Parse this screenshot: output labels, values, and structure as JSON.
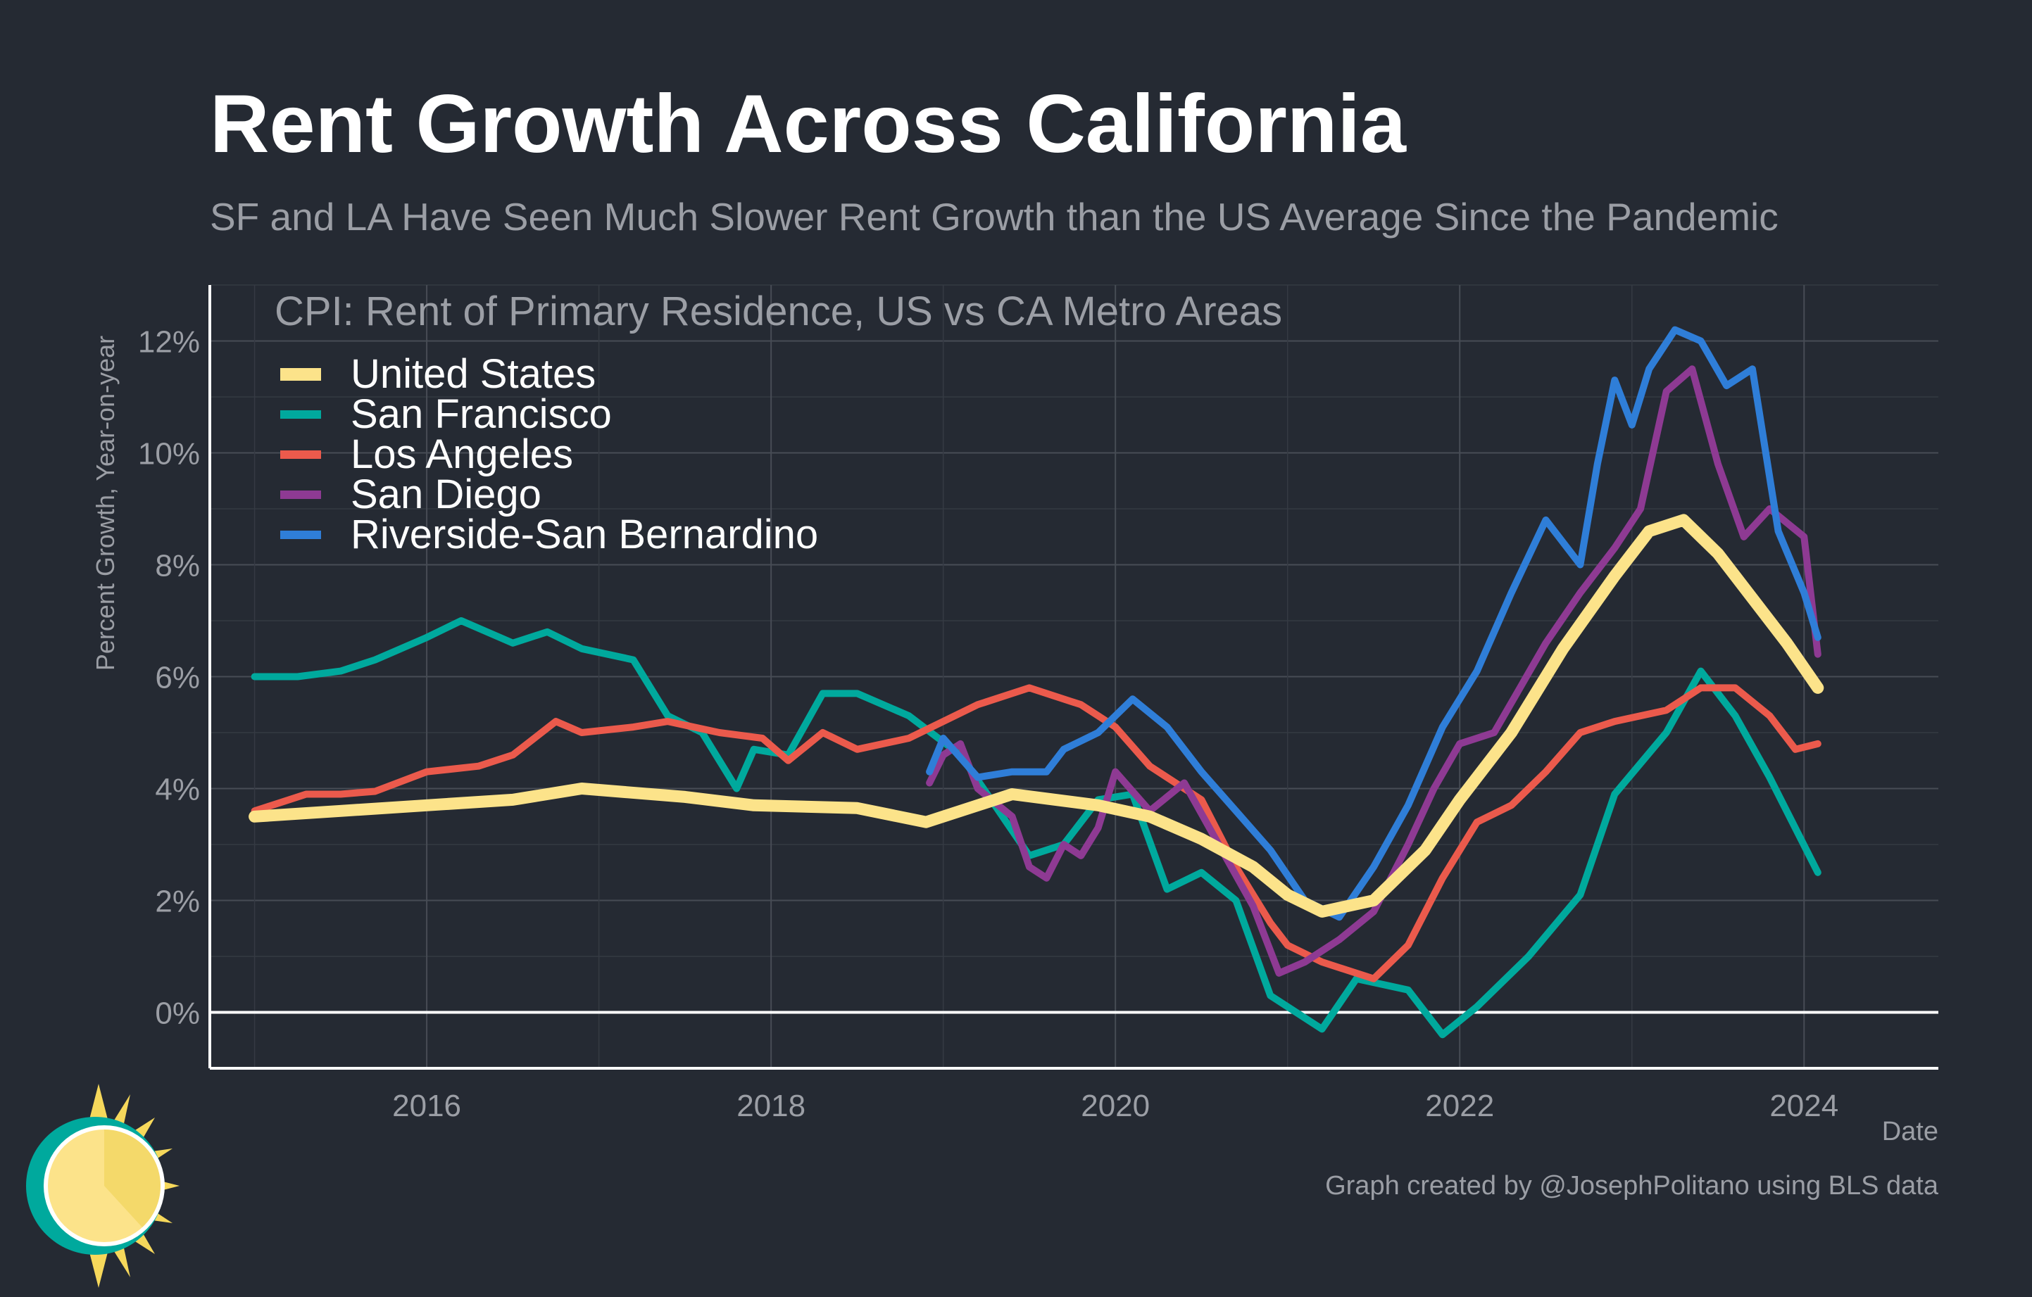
{
  "header": {
    "title": "Rent Growth Across California",
    "subtitle": "SF and LA Have Seen Much Slower Rent Growth than the US Average Since the Pandemic"
  },
  "caption": "Graph created by @JosephPolitano using BLS data",
  "logo": {
    "icon": "sun-logo-icon"
  },
  "chart_data": {
    "type": "line",
    "title": "CPI: Rent of Primary Residence, US vs CA Metro Areas",
    "xlabel": "Date",
    "ylabel": "Percent Growth, Year-on-year",
    "xlim": [
      2014.74,
      2024.78
    ],
    "ylim": [
      -1.0,
      13.0
    ],
    "x_ticks": [
      2016,
      2018,
      2020,
      2022,
      2024
    ],
    "x_tick_labels": [
      "2016",
      "2018",
      "2020",
      "2022",
      "2024"
    ],
    "y_ticks": [
      0,
      2,
      4,
      6,
      8,
      10,
      12
    ],
    "y_tick_labels": [
      "0%",
      "2%",
      "4%",
      "6%",
      "8%",
      "10%",
      "12%"
    ],
    "grid": true,
    "legend_position": "top-left",
    "background": "#252a33",
    "series": [
      {
        "name": "United States",
        "color": "#fce38a",
        "x": [
          2015.0,
          2015.5,
          2016.0,
          2016.5,
          2016.9,
          2017.5,
          2017.9,
          2018.5,
          2018.9,
          2019.4,
          2019.9,
          2020.2,
          2020.5,
          2020.8,
          2021.0,
          2021.2,
          2021.5,
          2021.8,
          2022.0,
          2022.3,
          2022.6,
          2022.9,
          2023.1,
          2023.3,
          2023.5,
          2023.7,
          2023.9,
          2024.08
        ],
        "values": [
          3.5,
          3.6,
          3.7,
          3.8,
          4.0,
          3.85,
          3.7,
          3.65,
          3.4,
          3.9,
          3.7,
          3.5,
          3.1,
          2.6,
          2.1,
          1.8,
          2.0,
          2.9,
          3.8,
          5.0,
          6.5,
          7.8,
          8.6,
          8.8,
          8.2,
          7.4,
          6.6,
          5.8
        ]
      },
      {
        "name": "San Francisco",
        "color": "#00a99d",
        "x": [
          2015.0,
          2015.25,
          2015.5,
          2015.7,
          2016.0,
          2016.2,
          2016.5,
          2016.7,
          2016.9,
          2017.2,
          2017.4,
          2017.6,
          2017.8,
          2017.9,
          2018.1,
          2018.3,
          2018.5,
          2018.8,
          2019.1,
          2019.3,
          2019.5,
          2019.7,
          2019.9,
          2020.1,
          2020.3,
          2020.5,
          2020.7,
          2020.9,
          2021.2,
          2021.4,
          2021.7,
          2021.9,
          2022.1,
          2022.4,
          2022.7,
          2022.9,
          2023.2,
          2023.4,
          2023.6,
          2023.8,
          2024.08
        ],
        "values": [
          6.0,
          6.0,
          6.1,
          6.3,
          6.7,
          7.0,
          6.6,
          6.8,
          6.5,
          6.3,
          5.3,
          5.0,
          4.0,
          4.7,
          4.6,
          5.7,
          5.7,
          5.3,
          4.6,
          3.7,
          2.8,
          3.0,
          3.8,
          3.9,
          2.2,
          2.5,
          2.0,
          0.3,
          -0.3,
          0.6,
          0.4,
          -0.4,
          0.1,
          1.0,
          2.1,
          3.9,
          5.0,
          6.1,
          5.3,
          4.2,
          2.5
        ]
      },
      {
        "name": "Los Angeles",
        "color": "#eb5a4c",
        "x": [
          2015.0,
          2015.3,
          2015.5,
          2015.7,
          2016.0,
          2016.3,
          2016.5,
          2016.75,
          2016.9,
          2017.2,
          2017.4,
          2017.7,
          2017.95,
          2018.1,
          2018.3,
          2018.5,
          2018.8,
          2019.0,
          2019.2,
          2019.5,
          2019.8,
          2020.0,
          2020.2,
          2020.5,
          2020.7,
          2020.9,
          2021.0,
          2021.2,
          2021.5,
          2021.7,
          2021.9,
          2022.1,
          2022.3,
          2022.5,
          2022.7,
          2022.9,
          2023.2,
          2023.4,
          2023.6,
          2023.8,
          2023.95,
          2024.08
        ],
        "values": [
          3.6,
          3.9,
          3.9,
          3.95,
          4.3,
          4.4,
          4.6,
          5.2,
          5.0,
          5.1,
          5.2,
          5.0,
          4.9,
          4.5,
          5.0,
          4.7,
          4.9,
          5.2,
          5.5,
          5.8,
          5.5,
          5.1,
          4.4,
          3.8,
          2.6,
          1.6,
          1.2,
          0.9,
          0.6,
          1.2,
          2.4,
          3.4,
          3.7,
          4.3,
          5.0,
          5.2,
          5.4,
          5.8,
          5.8,
          5.3,
          4.7,
          4.8
        ]
      },
      {
        "name": "San Diego",
        "color": "#8e3a93",
        "x": [
          2018.92,
          2019.0,
          2019.1,
          2019.2,
          2019.4,
          2019.5,
          2019.6,
          2019.7,
          2019.8,
          2019.9,
          2020.0,
          2020.2,
          2020.4,
          2020.6,
          2020.8,
          2020.95,
          2021.1,
          2021.3,
          2021.5,
          2021.7,
          2021.85,
          2022.0,
          2022.2,
          2022.5,
          2022.7,
          2022.9,
          2023.05,
          2023.2,
          2023.35,
          2023.5,
          2023.65,
          2023.8,
          2024.0,
          2024.08
        ],
        "values": [
          4.1,
          4.6,
          4.8,
          4.0,
          3.5,
          2.6,
          2.4,
          3.0,
          2.8,
          3.3,
          4.3,
          3.6,
          4.1,
          3.0,
          1.9,
          0.7,
          0.9,
          1.3,
          1.8,
          3.0,
          4.0,
          4.8,
          5.0,
          6.6,
          7.5,
          8.3,
          9.0,
          11.1,
          11.5,
          9.8,
          8.5,
          9.0,
          8.5,
          6.4
        ]
      },
      {
        "name": "Riverside-San Bernardino",
        "color": "#2f7ed8",
        "x": [
          2018.92,
          2019.0,
          2019.2,
          2019.4,
          2019.6,
          2019.7,
          2019.9,
          2020.1,
          2020.3,
          2020.5,
          2020.7,
          2020.9,
          2021.1,
          2021.3,
          2021.5,
          2021.7,
          2021.9,
          2022.1,
          2022.3,
          2022.5,
          2022.7,
          2022.8,
          2022.9,
          2023.0,
          2023.1,
          2023.25,
          2023.4,
          2023.55,
          2023.7,
          2023.85,
          2024.0,
          2024.08
        ],
        "values": [
          4.3,
          4.9,
          4.2,
          4.3,
          4.3,
          4.7,
          5.0,
          5.6,
          5.1,
          4.3,
          3.6,
          2.9,
          2.0,
          1.7,
          2.6,
          3.7,
          5.1,
          6.1,
          7.5,
          8.8,
          8.0,
          9.8,
          11.3,
          10.5,
          11.5,
          12.2,
          12.0,
          11.2,
          11.5,
          8.6,
          7.5,
          6.7
        ]
      }
    ]
  }
}
